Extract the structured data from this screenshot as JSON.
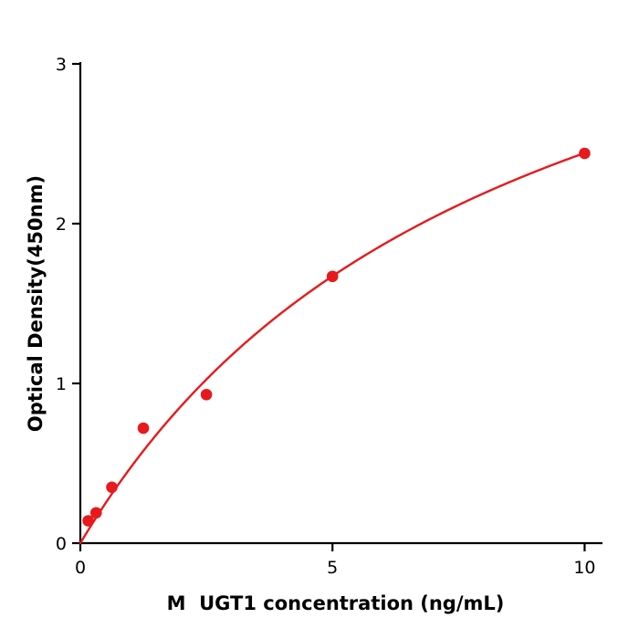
{
  "chart_data": {
    "type": "scatter",
    "title": "",
    "xlabel": "M  UGT1 concentration (ng/mL)",
    "ylabel": "Optical Density(450nm)",
    "x": [
      0.156,
      0.313,
      0.625,
      1.25,
      2.5,
      5,
      10
    ],
    "y": [
      0.14,
      0.19,
      0.35,
      0.72,
      0.93,
      1.67,
      2.44
    ],
    "xlim": [
      0,
      10.3
    ],
    "ylim": [
      0,
      3
    ],
    "xticks": [
      0,
      5,
      10
    ],
    "yticks": [
      0,
      1,
      2,
      3
    ],
    "grid": false,
    "legend": "none",
    "point_color": "#e8191c",
    "line_color": "#e8191c",
    "axis_color": "#000000",
    "fit": {
      "type": "michaelis-menten",
      "a": 4.53,
      "b": 8.55
    }
  }
}
